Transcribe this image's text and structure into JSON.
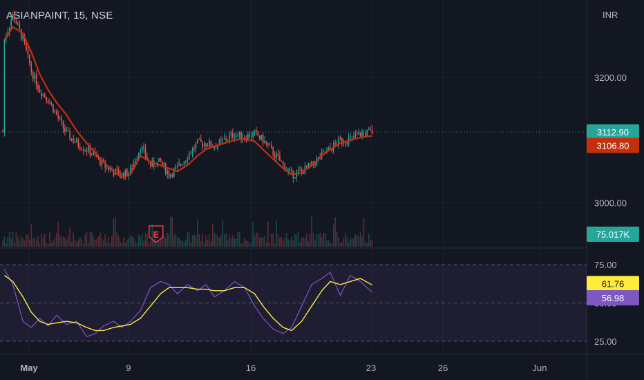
{
  "header": {
    "symbol": "ASIANPAINT, 15, NSE"
  },
  "price_axis": {
    "currency": "INR"
  },
  "chart_data": [
    {
      "type": "candlestick",
      "pane": "price",
      "ylim": [
        2960,
        3290
      ],
      "y_ticks": [
        3000,
        3200
      ],
      "y_tick_labels": [
        "3000.00",
        "3200.00"
      ],
      "x_axis_labels": [
        "May",
        "9",
        "16",
        "23",
        "26",
        "Jun"
      ],
      "price_path": [
        [
          1,
          3260
        ],
        [
          6,
          3300
        ],
        [
          12,
          3260
        ],
        [
          17,
          3210
        ],
        [
          22,
          3180
        ],
        [
          27,
          3165
        ],
        [
          32,
          3140
        ],
        [
          38,
          3110
        ],
        [
          44,
          3095
        ],
        [
          50,
          3085
        ],
        [
          55,
          3075
        ],
        [
          60,
          3060
        ],
        [
          66,
          3050
        ],
        [
          71,
          3045
        ],
        [
          76,
          3050
        ],
        [
          82,
          3090
        ],
        [
          88,
          3060
        ],
        [
          94,
          3065
        ],
        [
          99,
          3045
        ],
        [
          104,
          3055
        ],
        [
          110,
          3075
        ],
        [
          116,
          3095
        ],
        [
          121,
          3095
        ],
        [
          126,
          3090
        ],
        [
          132,
          3100
        ],
        [
          138,
          3110
        ],
        [
          144,
          3105
        ],
        [
          150,
          3110
        ],
        [
          155,
          3100
        ],
        [
          161,
          3080
        ],
        [
          167,
          3060
        ],
        [
          172,
          3045
        ],
        [
          178,
          3050
        ],
        [
          184,
          3060
        ],
        [
          190,
          3075
        ],
        [
          195,
          3085
        ],
        [
          201,
          3100
        ],
        [
          207,
          3100
        ],
        [
          213,
          3110
        ],
        [
          220,
          3112.9
        ]
      ],
      "last_price": "3112.90",
      "last_price_color": "#26a69a",
      "moving_average": {
        "color": "#c2300e",
        "path": [
          [
            1,
            3260
          ],
          [
            6,
            3280
          ],
          [
            12,
            3270
          ],
          [
            17,
            3240
          ],
          [
            22,
            3205
          ],
          [
            27,
            3180
          ],
          [
            32,
            3160
          ],
          [
            38,
            3140
          ],
          [
            44,
            3115
          ],
          [
            50,
            3095
          ],
          [
            55,
            3080
          ],
          [
            60,
            3065
          ],
          [
            66,
            3050
          ],
          [
            71,
            3040
          ],
          [
            76,
            3045
          ],
          [
            82,
            3075
          ],
          [
            88,
            3065
          ],
          [
            94,
            3060
          ],
          [
            99,
            3055
          ],
          [
            104,
            3050
          ],
          [
            110,
            3060
          ],
          [
            116,
            3075
          ],
          [
            121,
            3085
          ],
          [
            126,
            3090
          ],
          [
            132,
            3095
          ],
          [
            138,
            3100
          ],
          [
            144,
            3102
          ],
          [
            150,
            3098
          ],
          [
            155,
            3085
          ],
          [
            161,
            3070
          ],
          [
            167,
            3055
          ],
          [
            172,
            3045
          ],
          [
            178,
            3048
          ],
          [
            184,
            3060
          ],
          [
            190,
            3075
          ],
          [
            195,
            3085
          ],
          [
            201,
            3095
          ],
          [
            207,
            3100
          ],
          [
            213,
            3104
          ],
          [
            220,
            3106.8
          ]
        ],
        "last_value": "3106.80"
      },
      "volume": {
        "last_value": "75.017K",
        "color": "#26a69a"
      },
      "event_marker": {
        "label": "E",
        "color": "#f23645",
        "x": 88
      }
    },
    {
      "type": "line",
      "pane": "rsi",
      "ylim": [
        20,
        80
      ],
      "y_tick_labels": [
        "75.00",
        "50.00",
        "25.00"
      ],
      "band": [
        25,
        75
      ],
      "series": [
        {
          "color": "#7e57c2",
          "path": [
            [
              1,
              72
            ],
            [
              6,
              62
            ],
            [
              12,
              38
            ],
            [
              17,
              34
            ],
            [
              22,
              40
            ],
            [
              27,
              35
            ],
            [
              32,
              42
            ],
            [
              38,
              36
            ],
            [
              44,
              38
            ],
            [
              50,
              28
            ],
            [
              55,
              30
            ],
            [
              60,
              35
            ],
            [
              66,
              38
            ],
            [
              71,
              34
            ],
            [
              76,
              38
            ],
            [
              82,
              45
            ],
            [
              88,
              60
            ],
            [
              94,
              64
            ],
            [
              99,
              62
            ],
            [
              104,
              56
            ],
            [
              110,
              62
            ],
            [
              116,
              58
            ],
            [
              121,
              62
            ],
            [
              126,
              54
            ],
            [
              132,
              58
            ],
            [
              138,
              64
            ],
            [
              144,
              60
            ],
            [
              150,
              48
            ],
            [
              155,
              40
            ],
            [
              161,
              33
            ],
            [
              167,
              30
            ],
            [
              172,
              34
            ],
            [
              178,
              48
            ],
            [
              184,
              62
            ],
            [
              190,
              66
            ],
            [
              195,
              70
            ],
            [
              201,
              55
            ],
            [
              207,
              68
            ],
            [
              213,
              64
            ],
            [
              220,
              56.98
            ]
          ],
          "last_value": "56.98"
        },
        {
          "color": "#ffeb3b",
          "path": [
            [
              1,
              68
            ],
            [
              6,
              64
            ],
            [
              12,
              54
            ],
            [
              17,
              44
            ],
            [
              22,
              38
            ],
            [
              27,
              36
            ],
            [
              32,
              37
            ],
            [
              38,
              38
            ],
            [
              44,
              37
            ],
            [
              50,
              34
            ],
            [
              55,
              32
            ],
            [
              60,
              32
            ],
            [
              66,
              34
            ],
            [
              71,
              35
            ],
            [
              76,
              36
            ],
            [
              82,
              40
            ],
            [
              88,
              48
            ],
            [
              94,
              56
            ],
            [
              99,
              60
            ],
            [
              104,
              60
            ],
            [
              110,
              60
            ],
            [
              116,
              59
            ],
            [
              121,
              59
            ],
            [
              126,
              58
            ],
            [
              132,
              58
            ],
            [
              138,
              60
            ],
            [
              144,
              60
            ],
            [
              150,
              56
            ],
            [
              155,
              48
            ],
            [
              161,
              40
            ],
            [
              167,
              34
            ],
            [
              172,
              32
            ],
            [
              178,
              38
            ],
            [
              184,
              48
            ],
            [
              190,
              58
            ],
            [
              195,
              64
            ],
            [
              201,
              62
            ],
            [
              207,
              64
            ],
            [
              213,
              66
            ],
            [
              220,
              61.76
            ]
          ],
          "last_value": "61.76"
        }
      ]
    }
  ]
}
